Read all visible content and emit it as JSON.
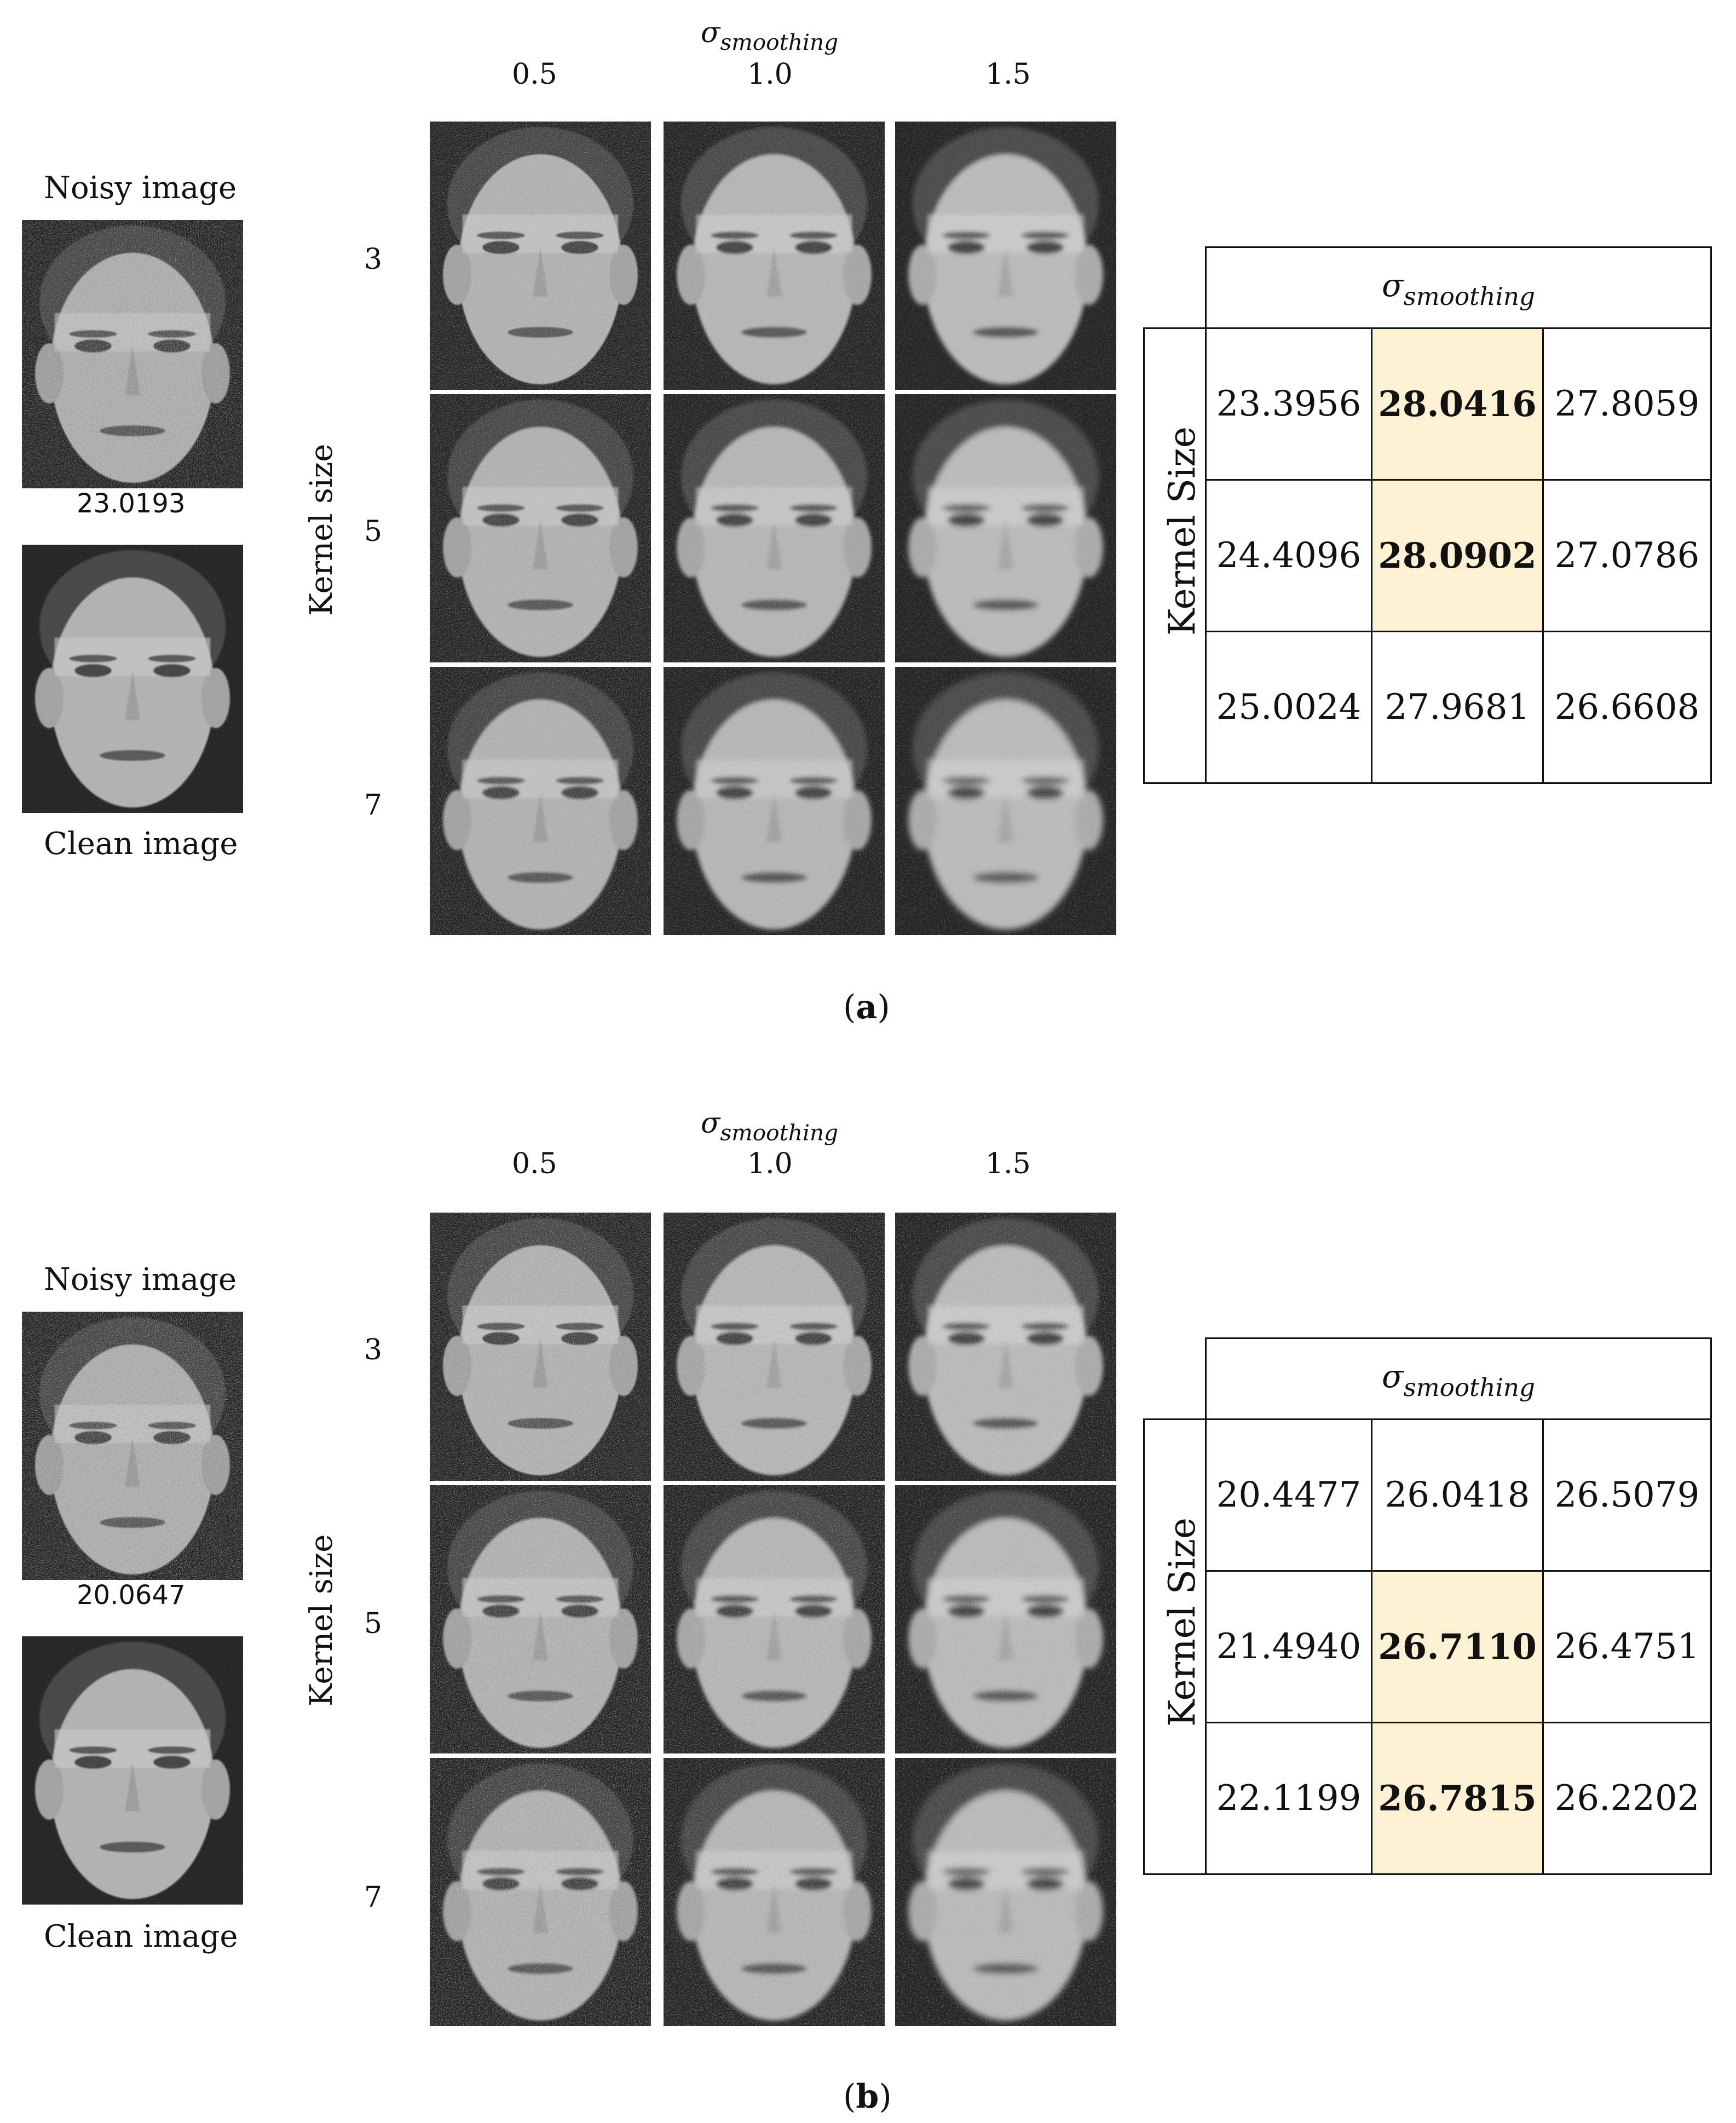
{
  "panels": [
    {
      "id": "a",
      "caption_letter": "a",
      "noisy_label": "Noisy image",
      "noisy_value": "23.0193",
      "clean_label": "Clean image",
      "grid_header": {
        "sigma_symbol": "σ",
        "sigma_sub": "smoothing",
        "columns": [
          "0.5",
          "1.0",
          "1.5"
        ]
      },
      "row_axis_label": "Kernel size",
      "rows": [
        "3",
        "5",
        "7"
      ],
      "table": {
        "sigma_symbol": "σ",
        "sigma_sub": "smoothing",
        "row_axis_label": "Kernel Size",
        "cells": [
          [
            "23.3956",
            "28.0416",
            "27.8059"
          ],
          [
            "24.4096",
            "28.0902",
            "27.0786"
          ],
          [
            "25.0024",
            "27.9681",
            "26.6608"
          ]
        ]
      }
    },
    {
      "id": "b",
      "caption_letter": "b",
      "noisy_label": "Noisy image",
      "noisy_value": "20.0647",
      "clean_label": "Clean image",
      "grid_header": {
        "sigma_symbol": "σ",
        "sigma_sub": "smoothing",
        "columns": [
          "0.5",
          "1.0",
          "1.5"
        ]
      },
      "row_axis_label": "Kernel size",
      "rows": [
        "3",
        "5",
        "7"
      ],
      "table": {
        "sigma_symbol": "σ",
        "sigma_sub": "smoothing",
        "row_axis_label": "Kernel Size",
        "cells": [
          [
            "20.4477",
            "26.0418",
            "26.5079"
          ],
          [
            "21.4940",
            "26.7110",
            "26.4751"
          ],
          [
            "22.1199",
            "26.7815",
            "26.2202"
          ]
        ]
      }
    }
  ],
  "colors": {
    "highlight": "#fdf1d4",
    "border": "#111111"
  }
}
